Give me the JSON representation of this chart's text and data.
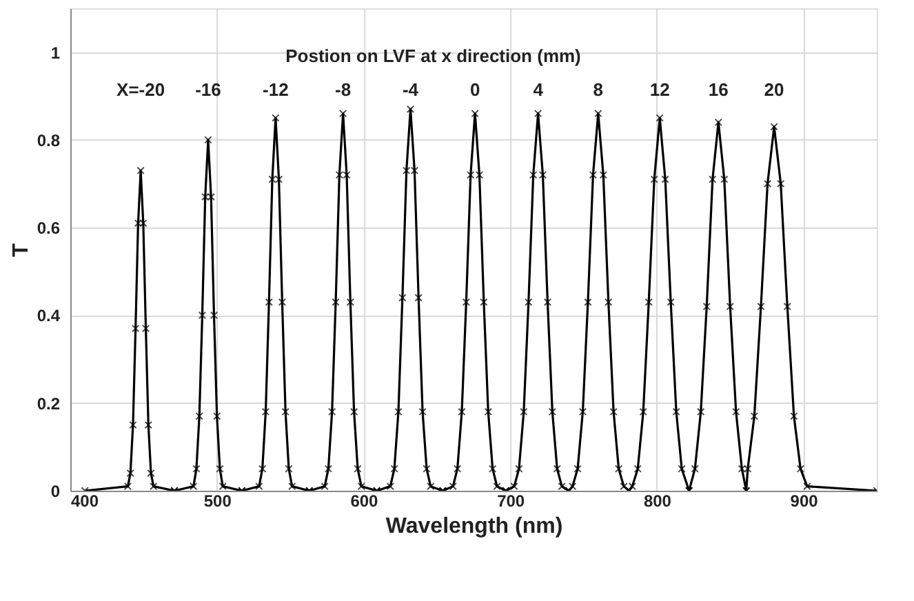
{
  "chart_data": {
    "type": "line",
    "xlabel": "Wavelength (nm)",
    "ylabel": "T",
    "xlim": [
      400,
      950
    ],
    "xticks": [
      400,
      500,
      600,
      700,
      800,
      900
    ],
    "ylim": [
      0,
      1.1
    ],
    "yticks": [
      0,
      0.2,
      0.4,
      0.6,
      0.8,
      1
    ],
    "grid": true,
    "marker": "cross",
    "line_style": "solid",
    "annotations": [
      "Postion on LVF at x direction (mm)",
      "X=-20",
      "-16",
      "-12",
      "-8",
      "-4",
      "0",
      "4",
      "8",
      "12",
      "16",
      "20"
    ],
    "series": [
      {
        "color": "#000000",
        "x": [
          410,
          439.25,
          441,
          442.75,
          444.5,
          446.25,
          448,
          449.75,
          451.5,
          453.25,
          455,
          456.75,
          471
        ],
        "values": [
          0,
          0.01,
          0.04,
          0.15,
          0.37,
          0.61,
          0.73,
          0.61,
          0.37,
          0.15,
          0.04,
          0.01,
          0
        ]
      },
      {
        "color": "#000000",
        "x": [
          471,
          484,
          486,
          488,
          490,
          492,
          494,
          496,
          498,
          500,
          502,
          504,
          517
        ],
        "values": [
          0,
          0.01,
          0.05,
          0.17,
          0.4,
          0.67,
          0.8,
          0.67,
          0.4,
          0.17,
          0.05,
          0.01,
          0
        ]
      },
      {
        "color": "#000000",
        "x": [
          517,
          528.75,
          531,
          533.25,
          535.5,
          537.75,
          540,
          542.25,
          544.5,
          546.75,
          549,
          551.25,
          563
        ],
        "values": [
          0,
          0.01,
          0.05,
          0.18,
          0.43,
          0.71,
          0.85,
          0.71,
          0.43,
          0.18,
          0.05,
          0.01,
          0
        ]
      },
      {
        "color": "#000000",
        "x": [
          563,
          573.5,
          576,
          578.5,
          581,
          583.5,
          586,
          588.5,
          591,
          593.5,
          596,
          598.5,
          609
        ],
        "values": [
          0,
          0.01,
          0.05,
          0.18,
          0.43,
          0.72,
          0.86,
          0.72,
          0.43,
          0.18,
          0.05,
          0.01,
          0
        ]
      },
      {
        "color": "#000000",
        "x": [
          609,
          618.25,
          621,
          623.75,
          626.5,
          629.25,
          632,
          634.75,
          637.5,
          640.25,
          643,
          645.75,
          654
        ],
        "values": [
          0,
          0.01,
          0.05,
          0.18,
          0.44,
          0.73,
          0.87,
          0.73,
          0.44,
          0.18,
          0.05,
          0.01,
          0
        ]
      },
      {
        "color": "#000000",
        "x": [
          654,
          661,
          664,
          667,
          670,
          673,
          676,
          679,
          682,
          685,
          688,
          691,
          697
        ],
        "values": [
          0,
          0.01,
          0.05,
          0.18,
          0.43,
          0.72,
          0.86,
          0.72,
          0.43,
          0.18,
          0.05,
          0.01,
          0
        ]
      },
      {
        "color": "#000000",
        "x": [
          697,
          702.75,
          706,
          709.25,
          712.5,
          715.75,
          719,
          722.25,
          725.5,
          728.75,
          732,
          735.25,
          740
        ],
        "values": [
          0,
          0.01,
          0.05,
          0.18,
          0.43,
          0.72,
          0.86,
          0.72,
          0.43,
          0.18,
          0.05,
          0.01,
          0
        ]
      },
      {
        "color": "#000000",
        "x": [
          740,
          742.5,
          746,
          749.5,
          753,
          756.5,
          760,
          763.5,
          767,
          770.5,
          774,
          777.5,
          781
        ],
        "values": [
          0,
          0.01,
          0.05,
          0.18,
          0.43,
          0.72,
          0.86,
          0.72,
          0.43,
          0.18,
          0.05,
          0.01,
          0
        ]
      },
      {
        "color": "#000000",
        "x": [
          781,
          783.25,
          787,
          790.75,
          794.5,
          798.25,
          802,
          805.75,
          809.5,
          813.25,
          817,
          822
        ],
        "values": [
          0,
          0.01,
          0.05,
          0.18,
          0.43,
          0.71,
          0.85,
          0.71,
          0.43,
          0.18,
          0.05,
          0
        ]
      },
      {
        "color": "#000000",
        "x": [
          822,
          826,
          830,
          834,
          838,
          842,
          846,
          850,
          854,
          858,
          861
        ],
        "values": [
          0,
          0.05,
          0.18,
          0.42,
          0.71,
          0.84,
          0.71,
          0.42,
          0.18,
          0.05,
          0
        ]
      },
      {
        "color": "#000000",
        "x": [
          861,
          862,
          866.5,
          871,
          875.5,
          880,
          884.5,
          889,
          893.5,
          898,
          902.5,
          950
        ],
        "values": [
          0,
          0.05,
          0.17,
          0.42,
          0.7,
          0.83,
          0.7,
          0.42,
          0.17,
          0.05,
          0.01,
          0
        ]
      }
    ]
  }
}
